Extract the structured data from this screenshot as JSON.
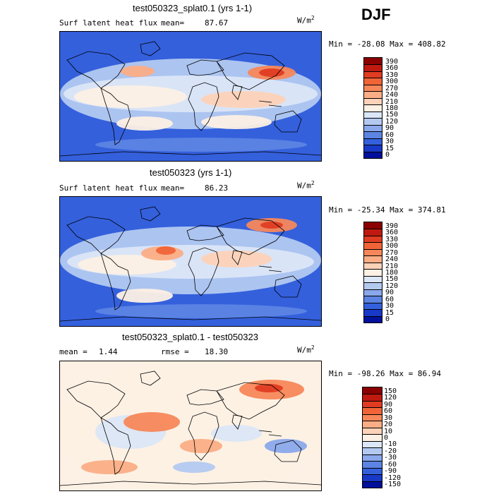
{
  "season": "DJF",
  "units_base": "W/m",
  "units_exp": "2",
  "chart_data": [
    {
      "type": "heatmap",
      "title": "test050323_splat0.1 (yrs 1-1)",
      "variable": "Surf latent heat flux",
      "mean_label": "mean=",
      "mean_value": "87.67",
      "min_label": "Min =",
      "min_value": "-28.08",
      "max_label": "Max =",
      "max_value": "408.82",
      "levels": [
        "390",
        "360",
        "330",
        "300",
        "270",
        "240",
        "210",
        "180",
        "150",
        "120",
        "90",
        "60",
        "30",
        "15",
        "0"
      ],
      "colors": [
        "#8b0000",
        "#c01a10",
        "#e03c22",
        "#f06438",
        "#f7875a",
        "#fbad85",
        "#fdd2b8",
        "#fdf0e4",
        "#dbe6f7",
        "#b3c9f0",
        "#8aa8eb",
        "#5c84e3",
        "#3460dc",
        "#1838c8",
        "#00109a"
      ]
    },
    {
      "type": "heatmap",
      "title": "test050323 (yrs 1-1)",
      "variable": "Surf latent heat flux",
      "mean_label": "mean=",
      "mean_value": "86.23",
      "min_label": "Min =",
      "min_value": "-25.34",
      "max_label": "Max =",
      "max_value": "374.81",
      "levels": [
        "390",
        "360",
        "330",
        "300",
        "270",
        "240",
        "210",
        "180",
        "150",
        "120",
        "90",
        "60",
        "30",
        "15",
        "0"
      ],
      "colors": [
        "#8b0000",
        "#c01a10",
        "#e03c22",
        "#f06438",
        "#f7875a",
        "#fbad85",
        "#fdd2b8",
        "#fdf0e4",
        "#dbe6f7",
        "#b3c9f0",
        "#8aa8eb",
        "#5c84e3",
        "#3460dc",
        "#1838c8",
        "#00109a"
      ]
    },
    {
      "type": "heatmap",
      "title": "test050323_splat0.1 - test050323",
      "mean_label": "mean =",
      "mean_value": "1.44",
      "rmse_label": "rmse =",
      "rmse_value": "18.30",
      "min_label": "Min =",
      "min_value": "-98.26",
      "max_label": "Max =",
      "max_value": "86.94",
      "levels": [
        "150",
        "120",
        "90",
        "60",
        "30",
        "20",
        "10",
        "0",
        "-10",
        "-20",
        "-30",
        "-60",
        "-90",
        "-120",
        "-150"
      ],
      "colors": [
        "#8b0000",
        "#c01a10",
        "#e03c22",
        "#f06438",
        "#f7875a",
        "#fbad85",
        "#fdd2b8",
        "#fdf0e4",
        "#dbe6f7",
        "#b3c9f0",
        "#8aa8eb",
        "#5c84e3",
        "#3460dc",
        "#1838c8",
        "#00109a"
      ]
    }
  ]
}
